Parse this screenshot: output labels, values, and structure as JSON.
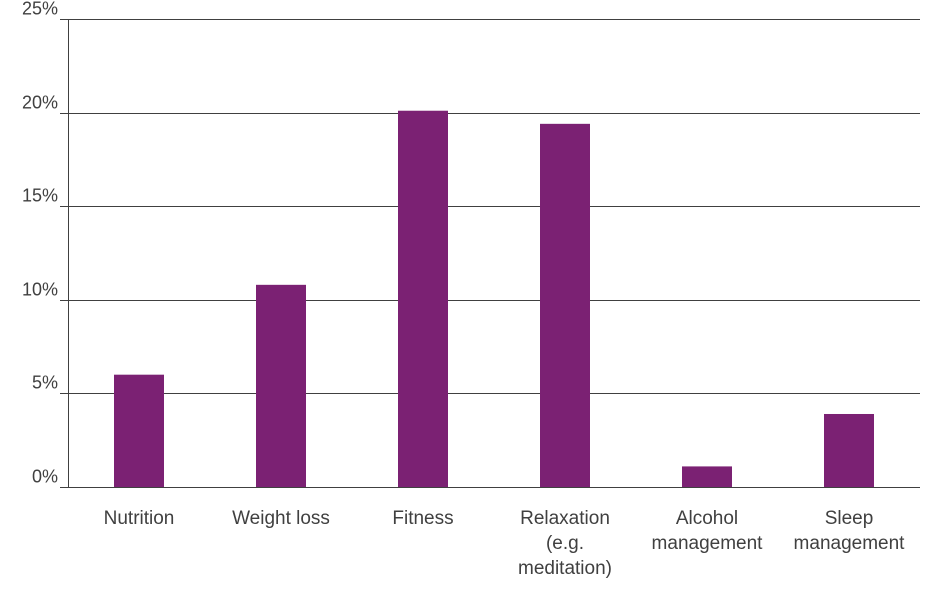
{
  "chart_data": {
    "type": "bar",
    "categories": [
      [
        "Nutrition"
      ],
      [
        "Weight loss"
      ],
      [
        "Fitness"
      ],
      [
        "Relaxation",
        "(e.g.",
        "meditation)"
      ],
      [
        "Alcohol",
        "management"
      ],
      [
        "Sleep",
        "management"
      ]
    ],
    "values": [
      6.0,
      10.8,
      20.1,
      19.4,
      1.1,
      3.9
    ],
    "ylim": [
      0,
      25
    ],
    "yticks": [
      0,
      5,
      10,
      15,
      20,
      25
    ],
    "ytick_labels": [
      "0%",
      "5%",
      "10%",
      "15%",
      "20%",
      "25%"
    ],
    "bar_color": "#7b2173",
    "grid_color": "#404040",
    "title": "",
    "xlabel": "",
    "ylabel": "",
    "grid": true,
    "legend": "none"
  }
}
